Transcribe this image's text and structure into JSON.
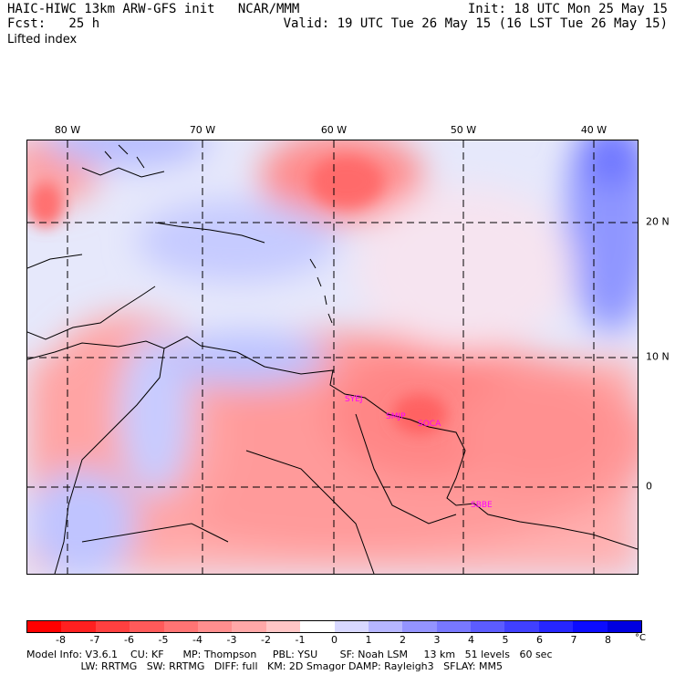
{
  "header": {
    "line1_left": "HAIC-HIWC 13km ARW-GFS init   NCAR/MMM",
    "line1_right": "Init: 18 UTC Mon 25 May 15",
    "line2_left": "Fcst:   25 h",
    "line2_right": "Valid: 19 UTC Tue 26 May 15 (16 LST Tue 26 May 15)",
    "field": "Lifted index"
  },
  "map": {
    "longitude_labels": [
      "80 W",
      "70 W",
      "60 W",
      "50 W",
      "40 W"
    ],
    "latitude_labels": [
      "20 N",
      "10 N",
      "0"
    ],
    "stations": [
      {
        "label": "SYEJ"
      },
      {
        "label": "SMJP"
      },
      {
        "label": "SOCA"
      },
      {
        "label": "SBBE"
      }
    ],
    "colors": {
      "negative": "#ff0000",
      "positive": "#0000ff",
      "neutral": "#ffffff"
    }
  },
  "colorbar": {
    "labels": [
      "-8",
      "-7",
      "-6",
      "-5",
      "-4",
      "-3",
      "-2",
      "-1",
      "0",
      "1",
      "2",
      "3",
      "4",
      "5",
      "6",
      "7",
      "8"
    ],
    "unit": "°C",
    "colors": [
      "#ff0000",
      "#ff2020",
      "#ff4040",
      "#ff5a5a",
      "#ff7474",
      "#ff8e8e",
      "#ffa8a8",
      "#ffc6c6",
      "#ffffff",
      "#d8d8ff",
      "#b6b6ff",
      "#9494ff",
      "#7878ff",
      "#5c5cff",
      "#4040ff",
      "#2626ff",
      "#0c0cff",
      "#0000e0"
    ]
  },
  "footer": {
    "line1": "Model Info: V3.6.1    CU: KF      MP: Thompson     PBL: YSU       SF: Noah LSM     13 km   51 levels   60 sec",
    "line2": "                 LW: RRTMG   SW: RRTMG   DIFF: full   KM: 2D Smagor DAMP: Rayleigh3   SFLAY: MM5"
  }
}
